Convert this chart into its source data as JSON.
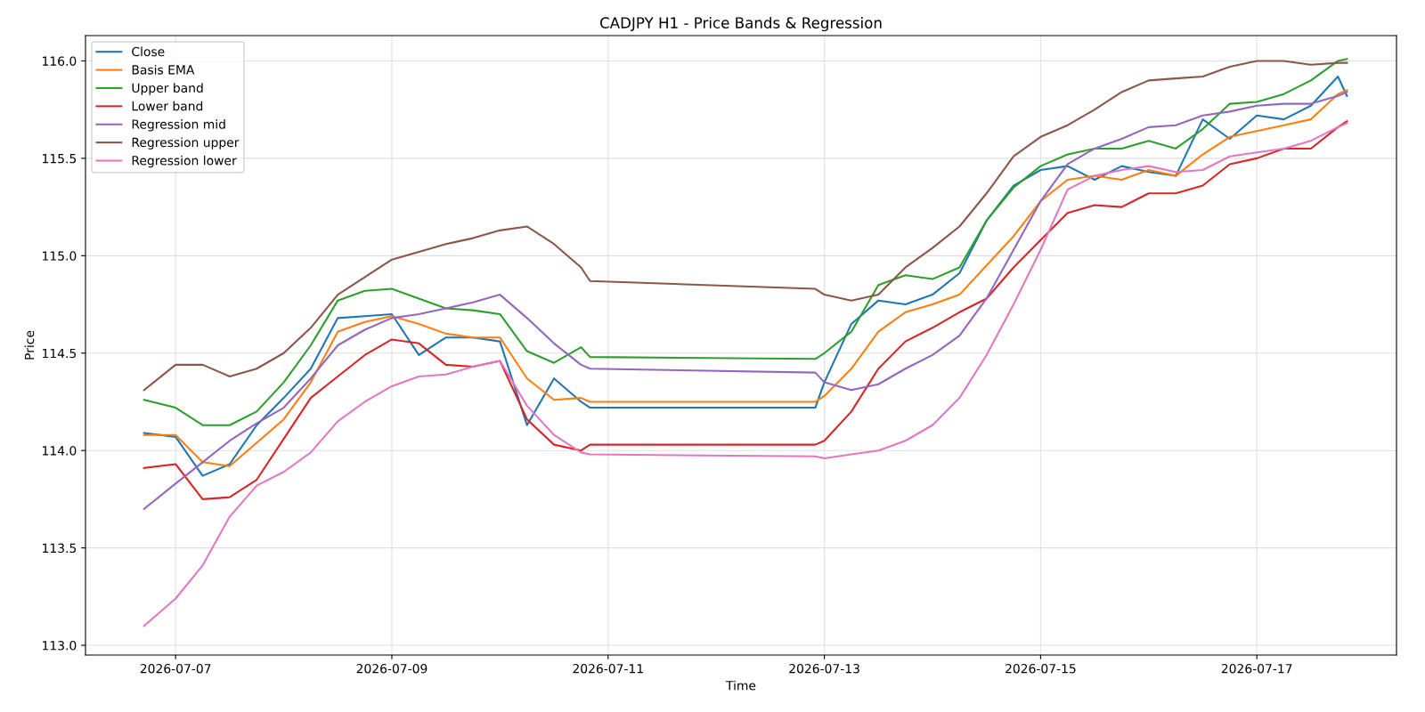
{
  "chart_data": {
    "type": "line",
    "title": "CADJPY H1 - Price Bands & Regression",
    "xlabel": "Time",
    "ylabel": "Price",
    "x": [
      "2026-07-06T17:00",
      "2026-07-07T00:00",
      "2026-07-07T06:00",
      "2026-07-07T12:00",
      "2026-07-07T18:00",
      "2026-07-08T00:00",
      "2026-07-08T06:00",
      "2026-07-08T12:00",
      "2026-07-08T18:00",
      "2026-07-09T00:00",
      "2026-07-09T06:00",
      "2026-07-09T12:00",
      "2026-07-09T18:00",
      "2026-07-10T00:00",
      "2026-07-10T06:00",
      "2026-07-10T12:00",
      "2026-07-10T18:00",
      "2026-07-10T20:00",
      "2026-07-12T22:00",
      "2026-07-13T00:00",
      "2026-07-13T06:00",
      "2026-07-13T12:00",
      "2026-07-13T18:00",
      "2026-07-14T00:00",
      "2026-07-14T06:00",
      "2026-07-14T12:00",
      "2026-07-14T18:00",
      "2026-07-15T00:00",
      "2026-07-15T06:00",
      "2026-07-15T12:00",
      "2026-07-15T18:00",
      "2026-07-16T00:00",
      "2026-07-16T06:00",
      "2026-07-16T12:00",
      "2026-07-16T18:00",
      "2026-07-17T00:00",
      "2026-07-17T06:00",
      "2026-07-17T12:00",
      "2026-07-17T18:00",
      "2026-07-17T20:00"
    ],
    "series": [
      {
        "name": "Close",
        "color": "#1f77b4",
        "values": [
          114.09,
          114.07,
          113.87,
          113.93,
          114.13,
          114.27,
          114.42,
          114.68,
          114.69,
          114.7,
          114.49,
          114.58,
          114.58,
          114.56,
          114.13,
          114.37,
          114.25,
          114.22,
          114.22,
          114.35,
          114.65,
          114.77,
          114.75,
          114.8,
          114.91,
          115.18,
          115.36,
          115.44,
          115.46,
          115.39,
          115.46,
          115.43,
          115.41,
          115.7,
          115.6,
          115.72,
          115.7,
          115.77,
          115.92,
          115.82
        ]
      },
      {
        "name": "Basis EMA",
        "color": "#ff7f0e",
        "values": [
          114.08,
          114.08,
          113.94,
          113.92,
          114.04,
          114.16,
          114.35,
          114.61,
          114.66,
          114.69,
          114.65,
          114.6,
          114.58,
          114.58,
          114.37,
          114.26,
          114.27,
          114.25,
          114.25,
          114.28,
          114.42,
          114.61,
          114.71,
          114.75,
          114.8,
          114.95,
          115.1,
          115.28,
          115.39,
          115.41,
          115.39,
          115.44,
          115.41,
          115.52,
          115.61,
          115.64,
          115.67,
          115.7,
          115.83,
          115.85
        ]
      },
      {
        "name": "Upper band",
        "color": "#2ca02c",
        "values": [
          114.26,
          114.22,
          114.13,
          114.13,
          114.2,
          114.35,
          114.54,
          114.77,
          114.82,
          114.83,
          114.78,
          114.73,
          114.72,
          114.7,
          114.51,
          114.45,
          114.53,
          114.48,
          114.47,
          114.5,
          114.61,
          114.85,
          114.9,
          114.88,
          114.94,
          115.18,
          115.35,
          115.46,
          115.52,
          115.55,
          115.55,
          115.59,
          115.55,
          115.65,
          115.78,
          115.79,
          115.83,
          115.9,
          116.0,
          116.01
        ]
      },
      {
        "name": "Lower band",
        "color": "#d62728",
        "values": [
          113.91,
          113.93,
          113.75,
          113.76,
          113.85,
          114.06,
          114.27,
          114.38,
          114.49,
          114.57,
          114.55,
          114.44,
          114.43,
          114.46,
          114.16,
          114.03,
          114.0,
          114.03,
          114.03,
          114.05,
          114.2,
          114.42,
          114.56,
          114.63,
          114.71,
          114.78,
          114.94,
          115.08,
          115.22,
          115.26,
          115.25,
          115.32,
          115.32,
          115.36,
          115.47,
          115.5,
          115.55,
          115.55,
          115.66,
          115.69
        ]
      },
      {
        "name": "Regression mid",
        "color": "#9467bd",
        "values": [
          113.7,
          113.83,
          113.94,
          114.05,
          114.14,
          114.22,
          114.37,
          114.54,
          114.62,
          114.68,
          114.7,
          114.73,
          114.76,
          114.8,
          114.68,
          114.55,
          114.44,
          114.42,
          114.4,
          114.35,
          114.31,
          114.34,
          114.42,
          114.49,
          114.59,
          114.78,
          115.03,
          115.28,
          115.47,
          115.55,
          115.6,
          115.66,
          115.67,
          115.72,
          115.74,
          115.77,
          115.78,
          115.78,
          115.82,
          115.84
        ]
      },
      {
        "name": "Regression upper",
        "color": "#8c564b",
        "values": [
          114.31,
          114.44,
          114.44,
          114.38,
          114.42,
          114.5,
          114.63,
          114.8,
          114.89,
          114.98,
          115.02,
          115.06,
          115.09,
          115.13,
          115.15,
          115.06,
          114.94,
          114.87,
          114.83,
          114.8,
          114.77,
          114.8,
          114.94,
          115.04,
          115.15,
          115.32,
          115.51,
          115.61,
          115.67,
          115.75,
          115.84,
          115.9,
          115.91,
          115.92,
          115.97,
          116.0,
          116.0,
          115.98,
          115.99,
          115.99
        ]
      },
      {
        "name": "Regression lower",
        "color": "#e377c2",
        "values": [
          113.1,
          113.24,
          113.41,
          113.66,
          113.82,
          113.89,
          113.99,
          114.15,
          114.25,
          114.33,
          114.38,
          114.39,
          114.43,
          114.46,
          114.23,
          114.08,
          113.99,
          113.98,
          113.97,
          113.96,
          113.98,
          114.0,
          114.05,
          114.13,
          114.27,
          114.49,
          114.75,
          115.03,
          115.34,
          115.41,
          115.44,
          115.46,
          115.43,
          115.44,
          115.51,
          115.53,
          115.55,
          115.59,
          115.66,
          115.68
        ]
      }
    ],
    "xlim": [
      "2026-07-06T04:00",
      "2026-07-18T07:00"
    ],
    "xticks": [
      "2026-07-07",
      "2026-07-09",
      "2026-07-11",
      "2026-07-13",
      "2026-07-15",
      "2026-07-17"
    ],
    "ylim": [
      112.95,
      116.13
    ],
    "yticks": [
      {
        "value": 113,
        "label": "113.0"
      },
      {
        "value": 113.5,
        "label": "113.5"
      },
      {
        "value": 114,
        "label": "114.0"
      },
      {
        "value": 114.5,
        "label": "114.5"
      },
      {
        "value": 115,
        "label": "115.0"
      },
      {
        "value": 115.5,
        "label": "115.5"
      },
      {
        "value": 116,
        "label": "116.0"
      }
    ],
    "grid": true,
    "legend": "top left",
    "line_style": "solid",
    "marker": "none"
  }
}
